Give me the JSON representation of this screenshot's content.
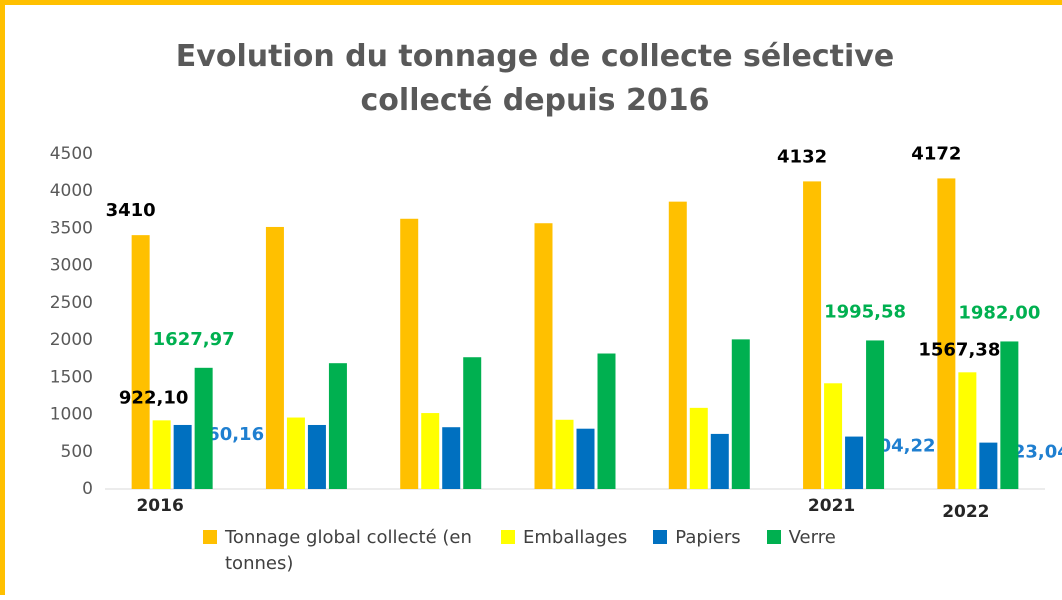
{
  "chart_data": {
    "type": "bar",
    "title": "Evolution du tonnage de collecte sélective collecté depuis 2016",
    "categories": [
      "2016",
      null,
      null,
      null,
      null,
      "2021",
      "2022"
    ],
    "series": [
      {
        "name": "Tonnage global collecté (en tonnes)",
        "color": "#ffc000",
        "label_color": "#000000",
        "values": [
          3410,
          3520,
          3630,
          3570,
          3860,
          4132,
          4172
        ],
        "value_labels": [
          "3410",
          null,
          null,
          null,
          null,
          "4132",
          "4172"
        ]
      },
      {
        "name": "Emballages",
        "color": "#ffff00",
        "label_color": "#000000",
        "values": [
          922.1,
          960,
          1020,
          930,
          1090,
          1420,
          1567.38
        ],
        "value_labels": [
          "922,10",
          null,
          null,
          null,
          null,
          null,
          "1567,38"
        ]
      },
      {
        "name": "Papiers",
        "color": "#0070c0",
        "label_color": "#1f7fd0",
        "values": [
          860.16,
          860,
          830,
          810,
          740,
          704.22,
          623.04
        ],
        "value_labels": [
          "860,16",
          null,
          null,
          null,
          null,
          "704,22",
          "623,04"
        ]
      },
      {
        "name": "Verre",
        "color": "#00b050",
        "label_color": "#00b050",
        "values": [
          1627.97,
          1690,
          1770,
          1820,
          2010,
          1995.58,
          1982.0
        ],
        "value_labels": [
          "1627,97",
          null,
          null,
          null,
          null,
          "1995,58",
          "1982,00"
        ]
      }
    ],
    "ylim": [
      0,
      4500
    ],
    "yticks": [
      0,
      500,
      1000,
      1500,
      2000,
      2500,
      3000,
      3500,
      4000,
      4500
    ],
    "grid": false
  }
}
